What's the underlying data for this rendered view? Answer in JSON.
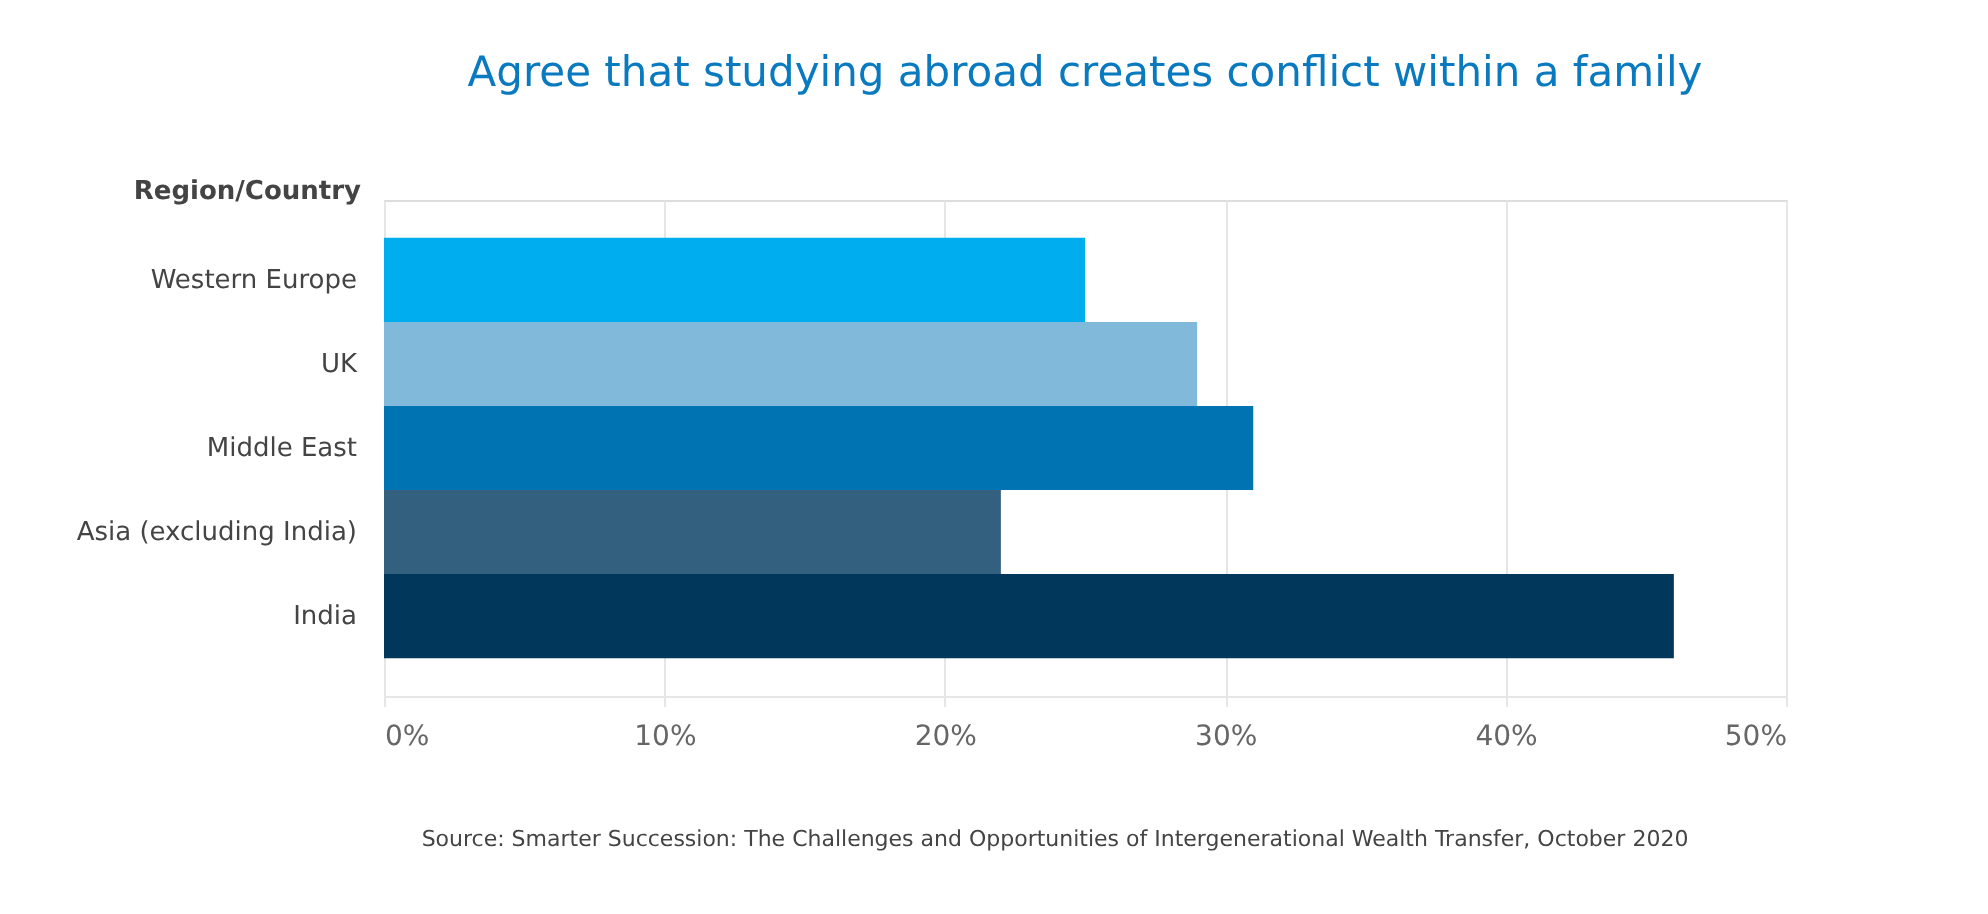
{
  "chart_data": {
    "type": "bar",
    "orientation": "horizontal",
    "title": "Agree that studying abroad creates conflict within a family",
    "ylabel": "Region/Country",
    "categories": [
      "Western Europe",
      "UK",
      "Middle East",
      "Asia (excluding India)",
      "India"
    ],
    "values": [
      25,
      29,
      31,
      22,
      46
    ],
    "colors": [
      "#00aeef",
      "#80b9d9",
      "#0074b3",
      "#33607f",
      "#00375a"
    ],
    "xlim": [
      0,
      50
    ],
    "xticks": [
      {
        "value": 0,
        "label": "0%"
      },
      {
        "value": 10,
        "label": "10%"
      },
      {
        "value": 20,
        "label": "20%"
      },
      {
        "value": 30,
        "label": "30%"
      },
      {
        "value": 40,
        "label": "40%"
      },
      {
        "value": 50,
        "label": "50%"
      }
    ],
    "grid": "x",
    "annotations": [
      "Source: Smarter Succession: The Challenges and Opportunities of Intergenerational Wealth Transfer, October 2020"
    ]
  }
}
